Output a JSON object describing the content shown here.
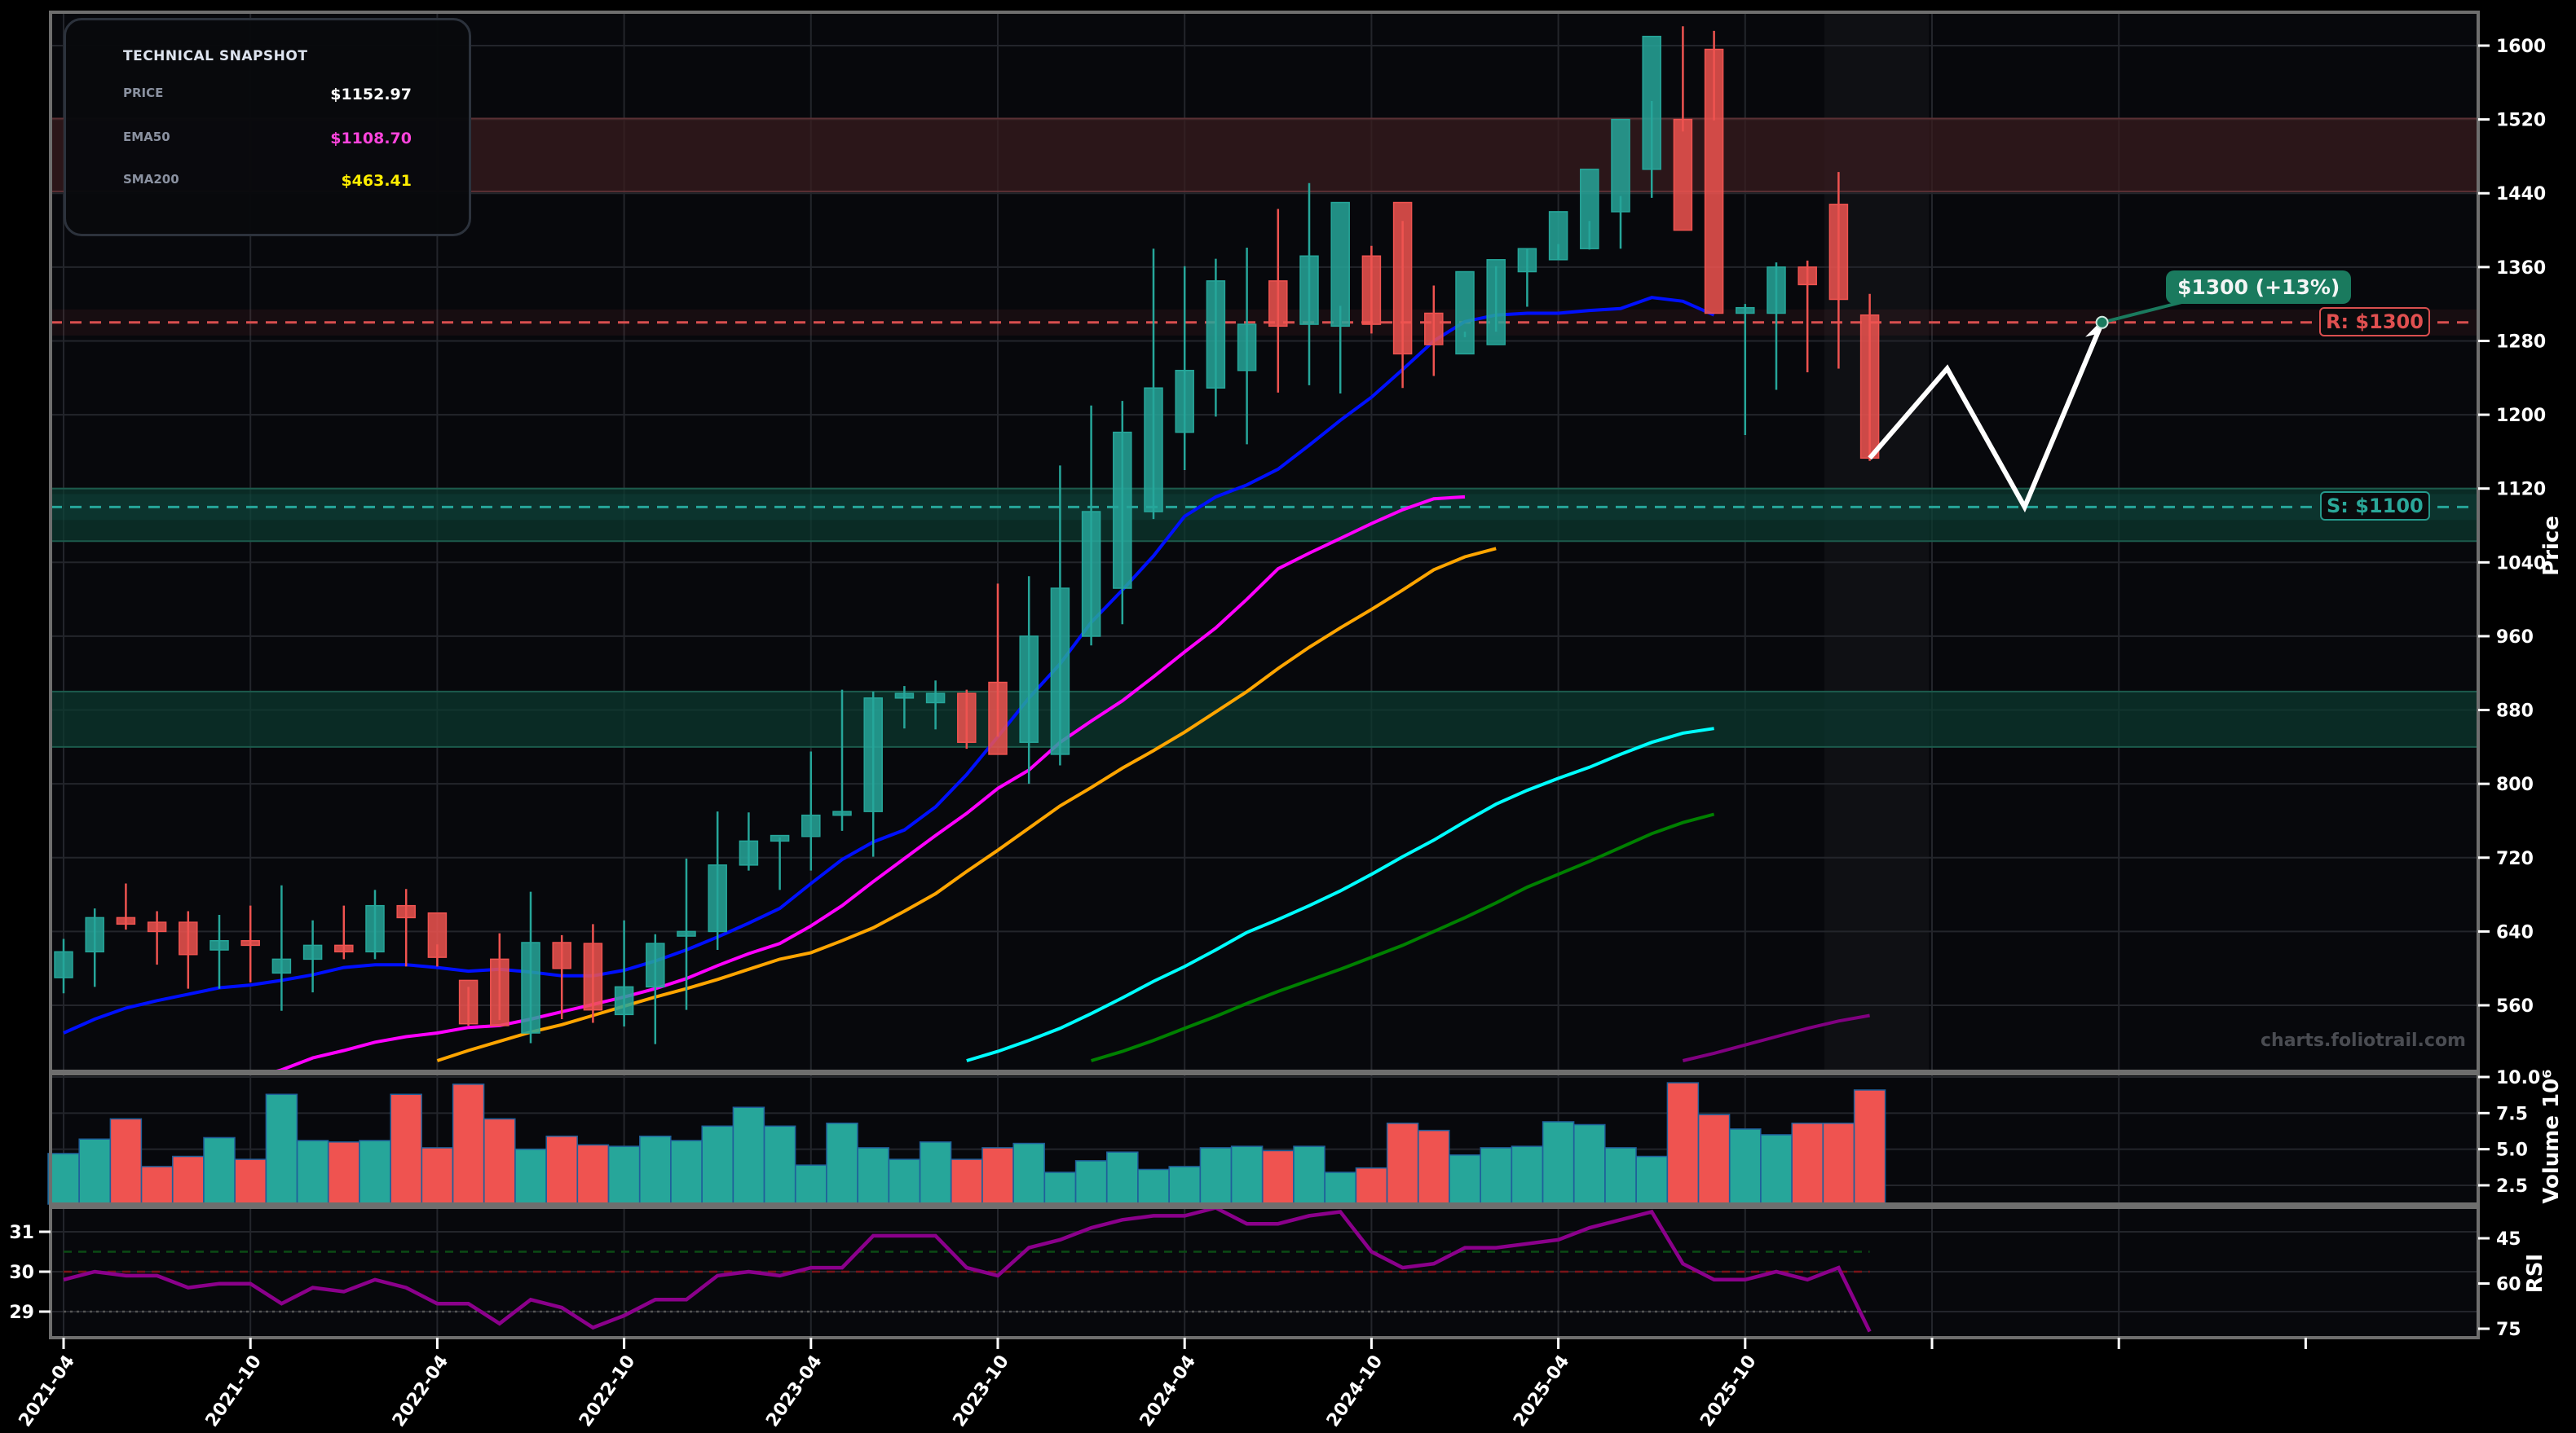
{
  "snapshot": {
    "title": "TECHNICAL SNAPSHOT",
    "rows": [
      {
        "label": "PRICE",
        "value": "$1152.97",
        "color": "#ffffff"
      },
      {
        "label": "EMA50",
        "value": "$1108.70",
        "color": "#ff44dd"
      },
      {
        "label": "SMA200",
        "value": "$463.41",
        "color": "#ffee00"
      }
    ]
  },
  "watermark": "charts.foliotrail.com",
  "annotations": {
    "target_label": "$1300 (+13%)",
    "resistance_label": "R: $1300",
    "support_label": "S: $1100"
  },
  "colors": {
    "up": "#26a69a",
    "down": "#ef5350",
    "background": "#07080c",
    "resistance": "#d94f4f",
    "support": "#26a69a",
    "ema_blue": "#0010ff",
    "ema_magenta": "#ff00ff",
    "ema_orange": "#ffa500",
    "ema_cyan": "#00ffff",
    "ema_green": "#008000",
    "ema_purple": "#800080",
    "rsi": "#8b008b"
  },
  "chart_data": {
    "type": "candlestick",
    "title": "",
    "xlabel": "",
    "ylabel": "Price",
    "ylim": [
      500,
      1630
    ],
    "x_ticks": [
      "2021-04",
      "2021-10",
      "2022-04",
      "2022-10",
      "2023-04",
      "2023-10",
      "2024-04",
      "2024-10",
      "2025-04",
      "2025-10"
    ],
    "y_ticks": [
      560,
      640,
      720,
      800,
      880,
      960,
      1040,
      1120,
      1200,
      1280,
      1360,
      1440,
      1520,
      1600
    ],
    "dates": [
      "2021-04",
      "2021-05",
      "2021-06",
      "2021-07",
      "2021-08",
      "2021-09",
      "2021-10",
      "2021-11",
      "2021-12",
      "2022-01",
      "2022-02",
      "2022-03",
      "2022-04",
      "2022-05",
      "2022-06",
      "2022-07",
      "2022-08",
      "2022-09",
      "2022-10",
      "2022-11",
      "2022-12",
      "2023-01",
      "2023-02",
      "2023-03",
      "2023-04",
      "2023-05",
      "2023-06",
      "2023-07",
      "2023-08",
      "2023-09",
      "2023-10",
      "2023-11",
      "2023-12",
      "2024-01",
      "2024-02",
      "2024-03",
      "2024-04",
      "2024-05",
      "2024-06",
      "2024-07",
      "2024-08",
      "2024-09",
      "2024-10",
      "2024-11",
      "2024-12",
      "2025-01",
      "2025-02",
      "2025-03",
      "2025-04",
      "2025-05",
      "2025-06",
      "2025-07",
      "2025-08",
      "2025-09",
      "2025-10",
      "2025-11",
      "2025-12",
      "2026-01",
      "2026-02"
    ],
    "open": [
      590,
      618,
      655,
      650,
      650,
      620,
      630,
      595,
      610,
      625,
      618,
      668,
      660,
      587,
      610,
      530,
      628,
      627,
      550,
      580,
      635,
      640,
      712,
      738,
      743,
      766,
      770,
      893,
      888,
      898,
      910,
      845,
      832,
      960,
      1012,
      1095,
      1181,
      1229,
      1248,
      1345,
      1298,
      1296,
      1372,
      1430,
      1310,
      1266,
      1276,
      1355,
      1368,
      1380,
      1420,
      1466,
      1520,
      1596,
      1310,
      1310,
      1360,
      1428,
      1308
    ],
    "high": [
      632,
      665,
      692,
      662,
      662,
      658,
      668,
      690,
      652,
      668,
      685,
      686,
      626,
      580,
      638,
      683,
      636,
      648,
      652,
      637,
      719,
      770,
      769,
      742,
      835,
      902,
      900,
      906,
      912,
      902,
      1017,
      1025,
      1145,
      1210,
      1215,
      1380,
      1361,
      1369,
      1381,
      1423,
      1451,
      1318,
      1383,
      1410,
      1340,
      1290,
      1361,
      1380,
      1385,
      1410,
      1437,
      1540,
      1621,
      1616,
      1320,
      1365,
      1367,
      1463,
      1331
    ],
    "low": [
      573,
      580,
      642,
      604,
      578,
      578,
      585,
      554,
      574,
      610,
      610,
      602,
      602,
      538,
      544,
      519,
      545,
      541,
      537,
      518,
      555,
      620,
      706,
      685,
      706,
      749,
      721,
      860,
      859,
      838,
      851,
      800,
      820,
      950,
      973,
      1087,
      1140,
      1198,
      1168,
      1224,
      1232,
      1223,
      1288,
      1229,
      1242,
      1284,
      1290,
      1317,
      1368,
      1379,
      1380,
      1435,
      1507,
      1519,
      1178,
      1227,
      1246,
      1250,
      1150
    ],
    "close": [
      618,
      655,
      648,
      640,
      615,
      630,
      625,
      610,
      625,
      618,
      668,
      655,
      612,
      540,
      538,
      628,
      600,
      555,
      580,
      627,
      640,
      712,
      738,
      744,
      766,
      770,
      893,
      898,
      898,
      845,
      832,
      960,
      1012,
      1095,
      1181,
      1229,
      1248,
      1345,
      1298,
      1296,
      1372,
      1430,
      1298,
      1266,
      1276,
      1355,
      1368,
      1380,
      1420,
      1466,
      1520,
      1610,
      1400,
      1310,
      1316,
      1360,
      1341,
      1325,
      1153
    ],
    "volume_millions": [
      4.7,
      5.7,
      7.1,
      3.8,
      4.5,
      5.8,
      4.3,
      8.8,
      5.6,
      5.5,
      5.6,
      8.8,
      5.1,
      9.5,
      7.1,
      5.0,
      5.9,
      5.3,
      5.2,
      5.9,
      5.6,
      6.6,
      7.9,
      6.6,
      3.9,
      6.8,
      5.1,
      4.3,
      5.5,
      4.3,
      5.1,
      5.4,
      3.4,
      4.2,
      4.8,
      3.6,
      3.8,
      5.1,
      5.2,
      4.9,
      5.2,
      3.4,
      3.7,
      6.8,
      6.3,
      4.6,
      5.1,
      5.2,
      6.9,
      6.7,
      5.1,
      4.5,
      9.6,
      7.4,
      6.4,
      6.0,
      6.8,
      6.8,
      9.1
    ],
    "volume_ylim": [
      0,
      10.5
    ],
    "volume_ticks": [
      2.5,
      5.0,
      7.5,
      10.0
    ],
    "volume_label": "Volume",
    "volume_scale": "10^6",
    "rsi": [
      29.8,
      30.0,
      29.9,
      29.9,
      29.6,
      29.7,
      29.7,
      29.2,
      29.6,
      29.5,
      29.8,
      29.6,
      29.2,
      29.2,
      28.7,
      29.3,
      29.1,
      28.6,
      28.9,
      29.3,
      29.3,
      29.9,
      30.0,
      29.9,
      30.1,
      30.1,
      30.9,
      30.9,
      30.9,
      30.1,
      29.9,
      30.6,
      30.8,
      31.1,
      31.3,
      31.4,
      31.4,
      31.6,
      31.2,
      31.2,
      31.4,
      31.5,
      30.5,
      30.1,
      30.2,
      30.6,
      30.6,
      30.7,
      30.8,
      31.1,
      31.3,
      31.5,
      30.2,
      29.8,
      29.8,
      30.0,
      29.8,
      30.1,
      28.5
    ],
    "rsi_left_ticks": [
      29,
      30,
      31
    ],
    "rsi_right_ticks": [
      45,
      60,
      75
    ],
    "rsi_label": "RSI",
    "rsi_ref_lines": [
      30.5,
      30.0,
      29.0
    ],
    "series": [
      {
        "name": "EMA (blue)",
        "color": "#0010ff",
        "values": [
          530,
          545,
          557,
          565,
          572,
          579,
          582,
          587,
          593,
          601,
          604,
          604,
          601,
          597,
          599,
          596,
          592,
          592,
          598,
          608,
          620,
          634,
          649,
          665,
          692,
          718,
          737,
          750,
          775,
          810,
          851,
          893,
          930,
          975,
          1010,
          1047,
          1090,
          1111,
          1124,
          1141,
          1167,
          1194,
          1219,
          1249,
          1280,
          1301,
          1308,
          1310,
          1310,
          1313,
          1315,
          1327,
          1323,
          1308
        ]
      },
      {
        "name": "EMA50 (magenta)",
        "color": "#ff00ff",
        "values": [
          null,
          null,
          null,
          null,
          null,
          null,
          481,
          490,
          503,
          511,
          520,
          526,
          530,
          536,
          538,
          545,
          553,
          561,
          569,
          578,
          589,
          603,
          616,
          627,
          646,
          668,
          694,
          719,
          744,
          768,
          795,
          815,
          845,
          868,
          890,
          916,
          943,
          969,
          1000,
          1033,
          1050,
          1066,
          1082,
          1097,
          1109,
          1111
        ]
      },
      {
        "name": "EMA (orange)",
        "color": "#ffa500",
        "values": [
          null,
          null,
          null,
          null,
          null,
          null,
          null,
          null,
          null,
          null,
          null,
          null,
          500,
          511,
          521,
          531,
          539,
          549,
          559,
          569,
          578,
          588,
          599,
          610,
          617,
          630,
          644,
          662,
          681,
          705,
          728,
          752,
          776,
          796,
          817,
          836,
          856,
          878,
          900,
          925,
          948,
          969,
          989,
          1010,
          1032,
          1046,
          1055
        ]
      },
      {
        "name": "EMA (cyan)",
        "color": "#00ffff",
        "values": [
          null,
          null,
          null,
          null,
          null,
          null,
          null,
          null,
          null,
          null,
          null,
          null,
          null,
          null,
          null,
          null,
          null,
          null,
          null,
          null,
          null,
          null,
          null,
          null,
          null,
          null,
          null,
          null,
          null,
          500,
          510,
          522,
          535,
          551,
          568,
          586,
          602,
          620,
          639,
          653,
          668,
          684,
          702,
          721,
          739,
          759,
          778,
          793,
          806,
          818,
          832,
          845,
          855,
          860
        ]
      },
      {
        "name": "EMA (green)",
        "color": "#008000",
        "values": [
          null,
          null,
          null,
          null,
          null,
          null,
          null,
          null,
          null,
          null,
          null,
          null,
          null,
          null,
          null,
          null,
          null,
          null,
          null,
          null,
          null,
          null,
          null,
          null,
          null,
          null,
          null,
          null,
          null,
          null,
          null,
          null,
          null,
          500,
          510,
          522,
          535,
          548,
          562,
          575,
          587,
          599,
          612,
          625,
          640,
          655,
          671,
          688,
          702,
          716,
          731,
          746,
          758,
          767
        ]
      },
      {
        "name": "SMA (purple)",
        "color": "#800080",
        "values": [
          null,
          null,
          null,
          null,
          null,
          null,
          null,
          null,
          null,
          null,
          null,
          null,
          null,
          null,
          null,
          null,
          null,
          null,
          null,
          null,
          null,
          null,
          null,
          null,
          null,
          null,
          null,
          null,
          null,
          null,
          null,
          null,
          null,
          null,
          null,
          null,
          null,
          null,
          null,
          null,
          null,
          null,
          null,
          null,
          null,
          null,
          null,
          null,
          null,
          null,
          null,
          null,
          500,
          508,
          517,
          526,
          535,
          543,
          549
        ]
      }
    ],
    "levels": [
      {
        "type": "resistance",
        "price": 1300,
        "label": "R: $1300"
      },
      {
        "type": "support",
        "price": 1100,
        "label": "S: $1100"
      }
    ],
    "zones": [
      {
        "type": "resistance",
        "from": 1442,
        "to": 1521
      },
      {
        "type": "support",
        "from": 1063,
        "to": 1120
      },
      {
        "type": "support",
        "from": 840,
        "to": 900
      }
    ],
    "projection": {
      "points": [
        [
          1153,
          0
        ],
        [
          1250,
          1
        ],
        [
          1100,
          2
        ],
        [
          1300,
          3
        ]
      ],
      "target": 1300,
      "target_label": "$1300 (+13%)"
    }
  }
}
